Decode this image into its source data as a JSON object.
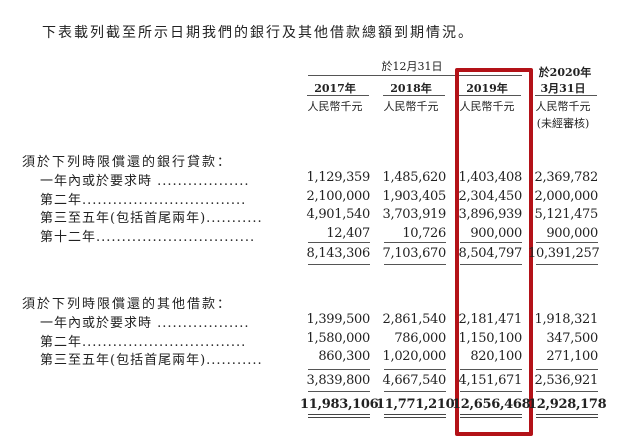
{
  "intro": "下表載列截至所示日期我們的銀行及其他借款總額到期情況。",
  "header": {
    "group_label": "於12月31日",
    "columns": [
      {
        "year": "2017年",
        "unit": "人民幣千元"
      },
      {
        "year": "2018年",
        "unit": "人民幣千元"
      },
      {
        "year": "2019年",
        "unit": "人民幣千元"
      },
      {
        "top": "於2020年",
        "year": "3月31日",
        "unit": "人民幣千元",
        "note": "(未經審核)"
      }
    ]
  },
  "bank_loans": {
    "title": "須於下列時限償還的銀行貸款：",
    "rows": [
      {
        "label": "一年內或於要求時 ..................",
        "values": [
          "1,129,359",
          "1,485,620",
          "1,403,408",
          "2,369,782"
        ]
      },
      {
        "label": "第二年................................",
        "values": [
          "2,100,000",
          "1,903,405",
          "2,304,450",
          "2,000,000"
        ]
      },
      {
        "label": "第三至五年(包括首尾兩年)...........",
        "values": [
          "4,901,540",
          "3,703,919",
          "3,896,939",
          "5,121,475"
        ]
      },
      {
        "label": "第十二年...............................",
        "values": [
          "12,407",
          "10,726",
          "900,000",
          "900,000"
        ]
      }
    ],
    "subtotal": [
      "8,143,306",
      "7,103,670",
      "8,504,797",
      "10,391,257"
    ]
  },
  "other_borrowings": {
    "title": "須於下列時限償還的其他借款：",
    "rows": [
      {
        "label": "一年內或於要求時 ..................",
        "values": [
          "1,399,500",
          "2,861,540",
          "2,181,471",
          "1,918,321"
        ]
      },
      {
        "label": "第二年................................",
        "values": [
          "1,580,000",
          "786,000",
          "1,150,100",
          "347,500"
        ]
      },
      {
        "label": "第三至五年(包括首尾兩年)...........",
        "values": [
          "860,300",
          "1,020,000",
          "820,100",
          "271,100"
        ]
      }
    ],
    "subtotal": [
      "3,839,800",
      "4,667,540",
      "4,151,671",
      "2,536,921"
    ]
  },
  "grand_total": [
    "11,983,106",
    "11,771,210",
    "12,656,468",
    "12,928,178"
  ],
  "highlight_color": "#b31218"
}
